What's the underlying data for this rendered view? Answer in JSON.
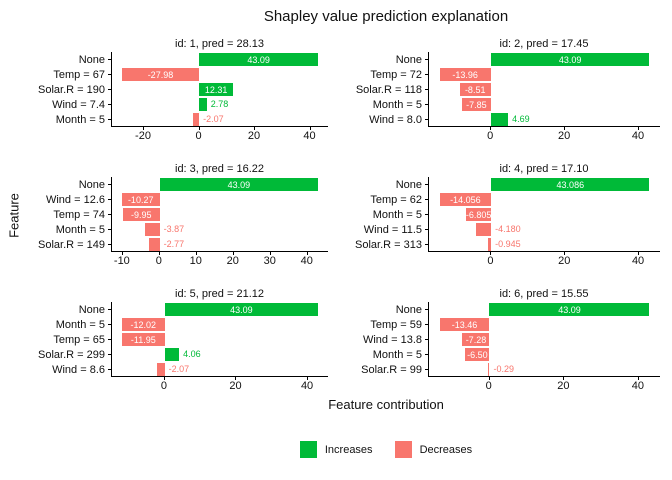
{
  "title": "Shapley value prediction explanation",
  "axes": {
    "y_label": "Feature",
    "x_label": "Feature contribution"
  },
  "colors": {
    "increase": "#00BA38",
    "decrease": "#F8766D",
    "inside_label": "#FFFFFF",
    "axis": "#000000"
  },
  "legend": {
    "items": [
      {
        "label": "Increases",
        "color": "#00BA38"
      },
      {
        "label": "Decreases",
        "color": "#F8766D"
      }
    ]
  },
  "chart_data": [
    {
      "type": "bar",
      "orientation": "horizontal",
      "title": "id: 1, pred = 28.13",
      "categories": [
        "None",
        "Temp = 67",
        "Solar.R = 190",
        "Wind = 7.4",
        "Month = 5"
      ],
      "values": [
        43.09,
        -27.98,
        12.31,
        2.78,
        -2.07
      ],
      "value_labels": [
        "43.09",
        "-27.98",
        "12.31",
        "2.78",
        "-2.07"
      ],
      "x_ticks": [
        -20,
        0,
        20,
        40
      ]
    },
    {
      "type": "bar",
      "orientation": "horizontal",
      "title": "id: 2, pred = 17.45",
      "categories": [
        "None",
        "Temp = 72",
        "Solar.R = 118",
        "Month = 5",
        "Wind = 8.0"
      ],
      "values": [
        43.09,
        -13.96,
        -8.51,
        -7.85,
        4.69
      ],
      "value_labels": [
        "43.09",
        "-13.96",
        "-8.51",
        "-7.85",
        "4.69"
      ],
      "x_ticks": [
        0,
        20,
        40
      ]
    },
    {
      "type": "bar",
      "orientation": "horizontal",
      "title": "id: 3, pred = 16.22",
      "categories": [
        "None",
        "Wind = 12.6",
        "Temp = 74",
        "Month = 5",
        "Solar.R = 149"
      ],
      "values": [
        43.09,
        -10.27,
        -9.95,
        -3.87,
        -2.77
      ],
      "value_labels": [
        "43.09",
        "-10.27",
        "-9.95",
        "-3.87",
        "-2.77"
      ],
      "x_ticks": [
        -10,
        0,
        10,
        20,
        30,
        40
      ]
    },
    {
      "type": "bar",
      "orientation": "horizontal",
      "title": "id: 4, pred = 17.10",
      "categories": [
        "None",
        "Temp = 62",
        "Month = 5",
        "Wind = 11.5",
        "Solar.R = 313"
      ],
      "values": [
        43.086,
        -14.056,
        -6.805,
        -4.18,
        -0.945
      ],
      "value_labels": [
        "43.086",
        "-14.056",
        "-6.805",
        "-4.180",
        "-0.945"
      ],
      "x_ticks": [
        0,
        20,
        40
      ]
    },
    {
      "type": "bar",
      "orientation": "horizontal",
      "title": "id: 5, pred = 21.12",
      "categories": [
        "None",
        "Month = 5",
        "Temp = 65",
        "Solar.R = 299",
        "Wind = 8.6"
      ],
      "values": [
        43.09,
        -12.02,
        -11.95,
        4.06,
        -2.07
      ],
      "value_labels": [
        "43.09",
        "-12.02",
        "-11.95",
        "4.06",
        "-2.07"
      ],
      "x_ticks": [
        0,
        20,
        40
      ]
    },
    {
      "type": "bar",
      "orientation": "horizontal",
      "title": "id: 6, pred = 15.55",
      "categories": [
        "None",
        "Temp = 59",
        "Wind = 13.8",
        "Month = 5",
        "Solar.R = 99"
      ],
      "values": [
        43.09,
        -13.46,
        -7.28,
        -6.5,
        -0.29
      ],
      "value_labels": [
        "43.09",
        "-13.46",
        "-7.28",
        "-6.50",
        "-0.29"
      ],
      "x_ticks": [
        0,
        20,
        40
      ]
    }
  ],
  "layout": {
    "inside_label_min_abs_value": 6,
    "axis_expansion_fraction": 0.05
  }
}
